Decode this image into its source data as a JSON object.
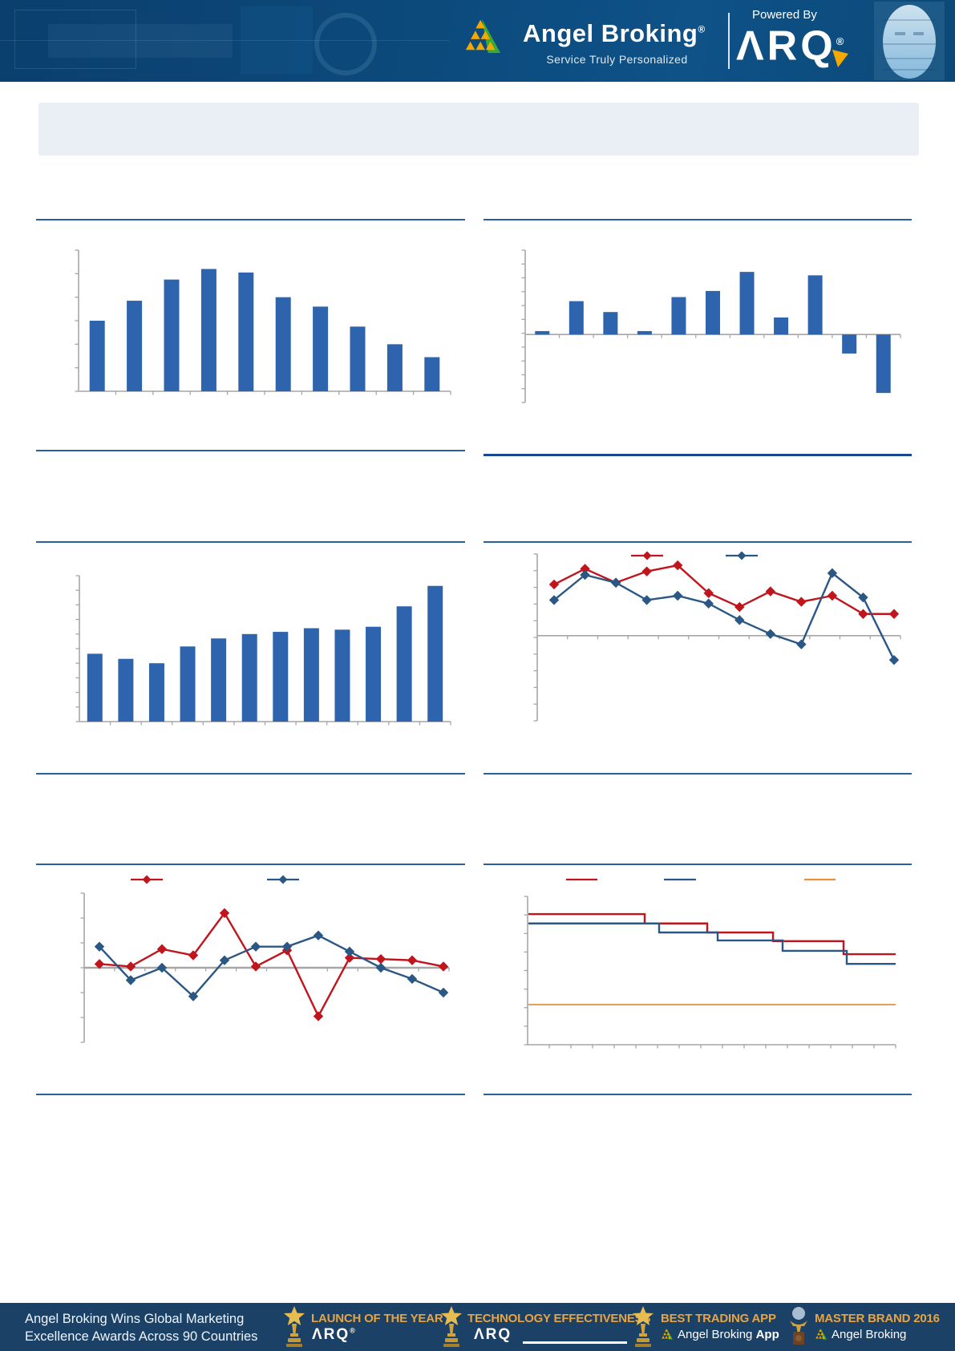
{
  "header": {
    "brand": {
      "name": "Angel Broking",
      "registered": "®",
      "tagline": "Service Truly Personalized"
    },
    "powered_by": {
      "label": "Powered By",
      "logo_text": "ΛRQ",
      "registered": "®"
    }
  },
  "section_title": {
    "text": ""
  },
  "colors": {
    "bar_blue": "#2e64ad",
    "line_red": "#c0151c",
    "line_dark_blue": "#2a5784",
    "line_orange": "#e8903a",
    "divider_thin": "#2a5fa8",
    "divider_thick": "#17478f",
    "axis_gray": "#a6a6a6",
    "header_blue": "#0c4a7c",
    "footer_navy": "#1c4166",
    "award_gold": "#e9a43f",
    "title_box_gray": "#e9eff5"
  },
  "chart_data": [
    {
      "type": "bar",
      "title": "",
      "xlabel": "",
      "ylabel": "",
      "axis_labels_visible": false,
      "bar_color": "#2e64ad",
      "categories": [
        "",
        "",
        "",
        "",
        "",
        "",
        "",
        "",
        "",
        ""
      ],
      "values": [
        3.0,
        3.85,
        4.75,
        5.2,
        5.05,
        4.0,
        3.6,
        2.75,
        2.0,
        1.45
      ],
      "ylim": [
        0,
        6
      ],
      "yticks": 6,
      "grid": false,
      "legend": "none"
    },
    {
      "type": "bar",
      "title": "",
      "xlabel": "",
      "ylabel": "",
      "axis_labels_visible": false,
      "bar_color": "#2e64ad",
      "categories": [
        "",
        "",
        "",
        "",
        "",
        "",
        "",
        "",
        "",
        "",
        ""
      ],
      "values": [
        0.25,
        2.45,
        1.65,
        0.25,
        2.75,
        3.2,
        4.6,
        1.25,
        4.35,
        -1.4,
        -4.3
      ],
      "ylim": [
        -5,
        6.2
      ],
      "yticks": 11,
      "grid": false,
      "legend": "none"
    },
    {
      "type": "bar",
      "title": "",
      "xlabel": "",
      "ylabel": "",
      "axis_labels_visible": false,
      "bar_color": "#2e64ad",
      "categories": [
        "",
        "",
        "",
        "",
        "",
        "",
        "",
        "",
        "",
        "",
        "",
        ""
      ],
      "values": [
        4.65,
        4.3,
        4.0,
        5.15,
        5.7,
        6.0,
        6.15,
        6.4,
        6.3,
        6.5,
        7.9,
        9.3
      ],
      "ylim": [
        0,
        10
      ],
      "yticks": 10,
      "grid": false,
      "legend": "none"
    },
    {
      "type": "line",
      "title": "",
      "xlabel": "",
      "ylabel": "",
      "axis_labels_visible": false,
      "marker": "diamond",
      "legend_position": "top",
      "legend_text_visible": false,
      "xticks": 12,
      "series": [
        {
          "name": "series-red",
          "color": "#c0151c",
          "values": [
            2.95,
            3.85,
            3.05,
            3.7,
            4.05,
            2.45,
            1.65,
            2.55,
            1.95,
            2.3,
            1.25,
            1.25
          ]
        },
        {
          "name": "series-blue",
          "color": "#2a5784",
          "values": [
            2.05,
            3.5,
            3.05,
            2.05,
            2.3,
            1.85,
            0.9,
            0.1,
            -0.5,
            3.6,
            2.2,
            -1.4
          ]
        }
      ],
      "ylim": [
        -4.9,
        4.7
      ],
      "yticks": 10,
      "grid": false
    },
    {
      "type": "line",
      "title": "",
      "xlabel": "",
      "ylabel": "",
      "axis_labels_visible": false,
      "marker": "diamond",
      "legend_position": "top",
      "legend_text_visible": false,
      "xticks": 12,
      "series": [
        {
          "name": "series-red",
          "color": "#c0151c",
          "values": [
            0.15,
            0.05,
            0.75,
            0.5,
            2.2,
            0.05,
            0.7,
            -1.95,
            0.4,
            0.35,
            0.3,
            0.05
          ]
        },
        {
          "name": "series-blue",
          "color": "#2a5784",
          "values": [
            0.85,
            -0.5,
            0.0,
            -1.15,
            0.3,
            0.85,
            0.85,
            1.3,
            0.65,
            0.0,
            -0.45,
            -1.0
          ]
        }
      ],
      "ylim": [
        -3,
        3
      ],
      "yticks": 6,
      "grid": false
    },
    {
      "type": "step",
      "title": "",
      "xlabel": "",
      "ylabel": "",
      "axis_labels_visible": false,
      "legend_position": "top",
      "legend_text_visible": false,
      "xticks": 17,
      "series": [
        {
          "name": "step-red",
          "color": "#c0151c",
          "width": 2.4,
          "points": [
            [
              659,
              3.62
            ],
            [
              804,
              3.62
            ],
            [
              804,
              3.36
            ],
            [
              882,
              3.36
            ],
            [
              882,
              3.11
            ],
            [
              964,
              3.11
            ],
            [
              964,
              2.87
            ],
            [
              1052,
              2.87
            ],
            [
              1052,
              2.51
            ],
            [
              1117,
              2.51
            ]
          ]
        },
        {
          "name": "step-blue",
          "color": "#2a5784",
          "width": 2.4,
          "points": [
            [
              659,
              3.36
            ],
            [
              822,
              3.36
            ],
            [
              822,
              3.11
            ],
            [
              895,
              3.11
            ],
            [
              895,
              2.89
            ],
            [
              976,
              2.89
            ],
            [
              976,
              2.6
            ],
            [
              1056,
              2.6
            ],
            [
              1056,
              2.24
            ],
            [
              1117,
              2.24
            ]
          ]
        },
        {
          "name": "step-orange",
          "color": "#e8903a",
          "width": 1.8,
          "points": [
            [
              659,
              1.11
            ],
            [
              1117,
              1.11
            ]
          ]
        }
      ],
      "ylim": [
        0,
        4.11
      ],
      "yticks": 8,
      "grid": false
    }
  ],
  "footer": {
    "headline_line1": "Angel Broking Wins Global Marketing",
    "headline_line2": "Excellence Awards Across 90 Countries",
    "awards": [
      {
        "title": "LAUNCH OF THE YEAR",
        "subtitle": "ΛRQ",
        "registered": "®",
        "icon": "star-trophy"
      },
      {
        "title": "TECHNOLOGY EFFECTIVENESS",
        "subtitle": "ΛRQ",
        "registered": "",
        "icon": "star-trophy"
      },
      {
        "title": "BEST TRADING APP",
        "subtitle": "Angel Broking",
        "subtitle_bold": "App",
        "icon": "star-trophy"
      },
      {
        "title": "MASTER BRAND 2016",
        "subtitle": "Angel Broking",
        "subtitle_bold": "",
        "icon": "globe-trophy"
      }
    ]
  }
}
